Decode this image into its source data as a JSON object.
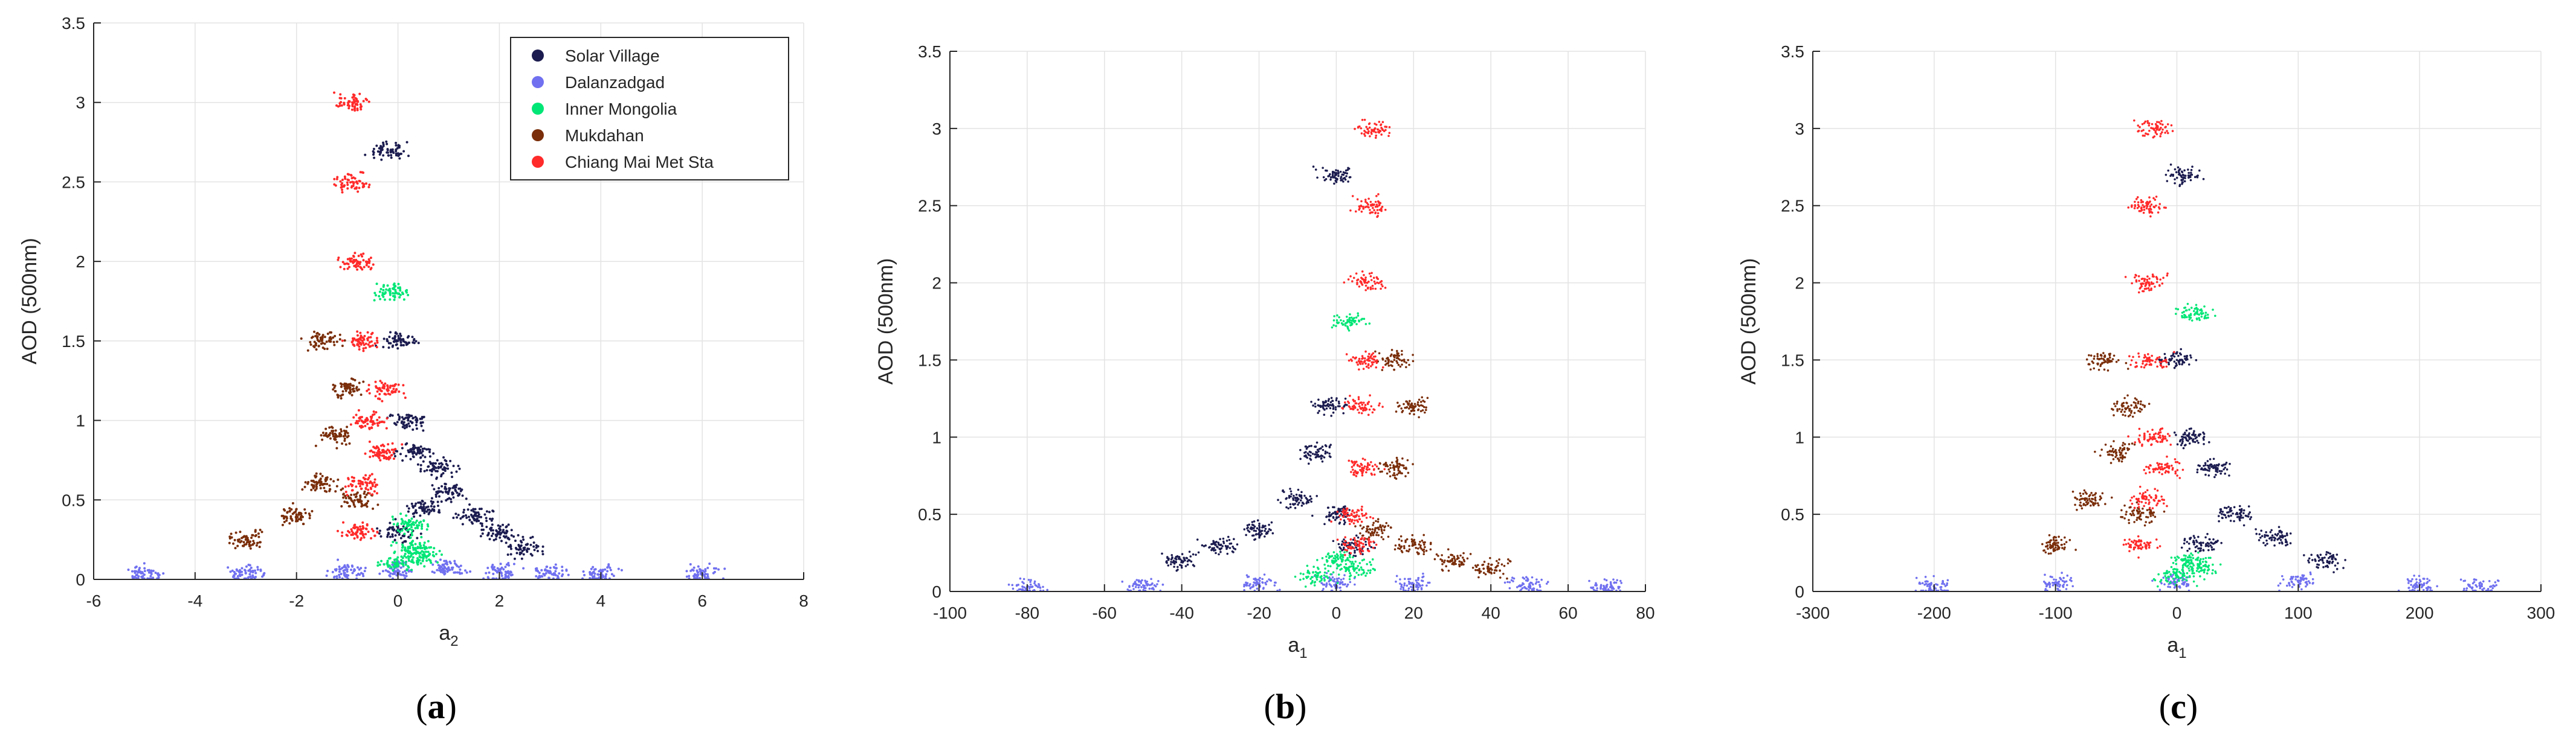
{
  "chart_data": [
    {
      "type": "scatter",
      "panel_label": "(a)",
      "xlabel": "a",
      "xlabel_sub": "2",
      "ylabel": "AOD (500nm)",
      "xlim": [
        -6,
        8
      ],
      "ylim": [
        0,
        3.5
      ],
      "xticks": [
        -6,
        -4,
        -2,
        0,
        2,
        4,
        6,
        8
      ],
      "yticks": [
        0,
        0.5,
        1,
        1.5,
        2,
        2.5,
        3,
        3.5
      ],
      "grid": true,
      "legend": {
        "placement": "top-right",
        "entries": [
          "Solar Village",
          "Dalanzadgad",
          "Inner Mongolia",
          "Mukdahan",
          "Chiang Mai Met Sta"
        ]
      },
      "series": [
        {
          "name": "Solar Village",
          "color": "#1c1c50",
          "points": [
            [
              0.0,
              0.3
            ],
            [
              0.5,
              0.45
            ],
            [
              0.3,
              0.8
            ],
            [
              1.0,
              0.55
            ],
            [
              1.5,
              0.4
            ],
            [
              2.0,
              0.3
            ],
            [
              0.2,
              1.0
            ],
            [
              0.0,
              1.5
            ],
            [
              0.8,
              0.7
            ],
            [
              2.5,
              0.2
            ],
            [
              -0.2,
              2.7
            ]
          ]
        },
        {
          "name": "Dalanzadgad",
          "color": "#7070f0",
          "points": [
            [
              -5.0,
              0.03
            ],
            [
              -3.0,
              0.04
            ],
            [
              -1.0,
              0.05
            ],
            [
              0.0,
              0.06
            ],
            [
              1.0,
              0.07
            ],
            [
              2.0,
              0.05
            ],
            [
              3.0,
              0.04
            ],
            [
              4.0,
              0.03
            ],
            [
              6.0,
              0.03
            ]
          ]
        },
        {
          "name": "Inner Mongolia",
          "color": "#00e676",
          "points": [
            [
              0.0,
              0.1
            ],
            [
              0.3,
              0.2
            ],
            [
              0.2,
              0.35
            ],
            [
              0.5,
              0.15
            ],
            [
              -0.1,
              1.8
            ]
          ]
        },
        {
          "name": "Mukdahan",
          "color": "#7a2e0a",
          "points": [
            [
              -3.0,
              0.25
            ],
            [
              -2.0,
              0.4
            ],
            [
              -1.5,
              0.6
            ],
            [
              -1.2,
              0.9
            ],
            [
              -1.0,
              1.2
            ],
            [
              -1.5,
              1.5
            ],
            [
              -0.8,
              0.5
            ]
          ]
        },
        {
          "name": "Chiang Mai Met Sta",
          "color": "#ff2a2a",
          "points": [
            [
              -0.8,
              0.3
            ],
            [
              -0.7,
              0.6
            ],
            [
              -0.6,
              1.0
            ],
            [
              -0.7,
              1.5
            ],
            [
              -0.8,
              2.0
            ],
            [
              -0.9,
              2.5
            ],
            [
              -0.9,
              3.0
            ],
            [
              -0.3,
              0.8
            ],
            [
              -0.2,
              1.2
            ]
          ]
        }
      ]
    },
    {
      "type": "scatter",
      "panel_label": "(b)",
      "xlabel": "a",
      "xlabel_sub": "1",
      "ylabel": "AOD (500nm)",
      "xlim": [
        -100,
        80
      ],
      "ylim": [
        0,
        3.5
      ],
      "xticks": [
        -100,
        -80,
        -60,
        -40,
        -20,
        0,
        20,
        40,
        60,
        80
      ],
      "yticks": [
        0,
        0.5,
        1,
        1.5,
        2,
        2.5,
        3,
        3.5
      ],
      "grid": true,
      "series": [
        {
          "name": "Solar Village",
          "color": "#1c1c50",
          "points": [
            [
              -40,
              0.2
            ],
            [
              -20,
              0.4
            ],
            [
              -10,
              0.6
            ],
            [
              -5,
              0.9
            ],
            [
              0,
              0.5
            ],
            [
              5,
              0.3
            ],
            [
              -30,
              0.3
            ],
            [
              -2,
              1.2
            ],
            [
              0,
              2.7
            ]
          ]
        },
        {
          "name": "Dalanzadgad",
          "color": "#7070f0",
          "points": [
            [
              -80,
              0.03
            ],
            [
              -50,
              0.04
            ],
            [
              -20,
              0.05
            ],
            [
              0,
              0.06
            ],
            [
              20,
              0.05
            ],
            [
              50,
              0.04
            ],
            [
              70,
              0.03
            ]
          ]
        },
        {
          "name": "Inner Mongolia",
          "color": "#00e676",
          "points": [
            [
              -5,
              0.1
            ],
            [
              0,
              0.2
            ],
            [
              5,
              0.15
            ],
            [
              3,
              1.75
            ]
          ]
        },
        {
          "name": "Mukdahan",
          "color": "#7a2e0a",
          "points": [
            [
              10,
              0.4
            ],
            [
              15,
              0.8
            ],
            [
              20,
              1.2
            ],
            [
              20,
              0.3
            ],
            [
              30,
              0.2
            ],
            [
              40,
              0.15
            ],
            [
              15,
              1.5
            ]
          ]
        },
        {
          "name": "Chiang Mai Met Sta",
          "color": "#ff2a2a",
          "points": [
            [
              5,
              0.3
            ],
            [
              7,
              0.8
            ],
            [
              8,
              1.5
            ],
            [
              8,
              2.0
            ],
            [
              9,
              2.5
            ],
            [
              10,
              3.0
            ],
            [
              4,
              0.5
            ],
            [
              6,
              1.2
            ]
          ]
        }
      ]
    },
    {
      "type": "scatter",
      "panel_label": "(c)",
      "xlabel": "a",
      "xlabel_sub": "1",
      "ylabel": "AOD (500nm)",
      "xlim": [
        -300,
        300
      ],
      "ylim": [
        0,
        3.5
      ],
      "xticks": [
        -300,
        -200,
        -100,
        0,
        100,
        200,
        300
      ],
      "yticks": [
        0,
        0.5,
        1,
        1.5,
        2,
        2.5,
        3,
        3.5
      ],
      "grid": true,
      "series": [
        {
          "name": "Solar Village",
          "color": "#1c1c50",
          "points": [
            [
              20,
              0.3
            ],
            [
              50,
              0.5
            ],
            [
              80,
              0.35
            ],
            [
              120,
              0.2
            ],
            [
              30,
              0.8
            ],
            [
              10,
              1.0
            ],
            [
              0,
              1.5
            ],
            [
              5,
              2.7
            ]
          ]
        },
        {
          "name": "Dalanzadgad",
          "color": "#7070f0",
          "points": [
            [
              -200,
              0.03
            ],
            [
              -100,
              0.05
            ],
            [
              0,
              0.06
            ],
            [
              100,
              0.07
            ],
            [
              200,
              0.04
            ],
            [
              250,
              0.03
            ]
          ]
        },
        {
          "name": "Inner Mongolia",
          "color": "#00e676",
          "points": [
            [
              0,
              0.1
            ],
            [
              10,
              0.2
            ],
            [
              20,
              0.15
            ],
            [
              15,
              1.8
            ]
          ]
        },
        {
          "name": "Mukdahan",
          "color": "#7a2e0a",
          "points": [
            [
              -100,
              0.3
            ],
            [
              -70,
              0.6
            ],
            [
              -50,
              0.9
            ],
            [
              -40,
              1.2
            ],
            [
              -60,
              1.5
            ],
            [
              -30,
              0.5
            ]
          ]
        },
        {
          "name": "Chiang Mai Met Sta",
          "color": "#ff2a2a",
          "points": [
            [
              -30,
              0.3
            ],
            [
              -25,
              0.6
            ],
            [
              -20,
              1.0
            ],
            [
              -22,
              1.5
            ],
            [
              -25,
              2.0
            ],
            [
              -25,
              2.5
            ],
            [
              -20,
              3.0
            ],
            [
              -10,
              0.8
            ]
          ]
        }
      ]
    }
  ]
}
